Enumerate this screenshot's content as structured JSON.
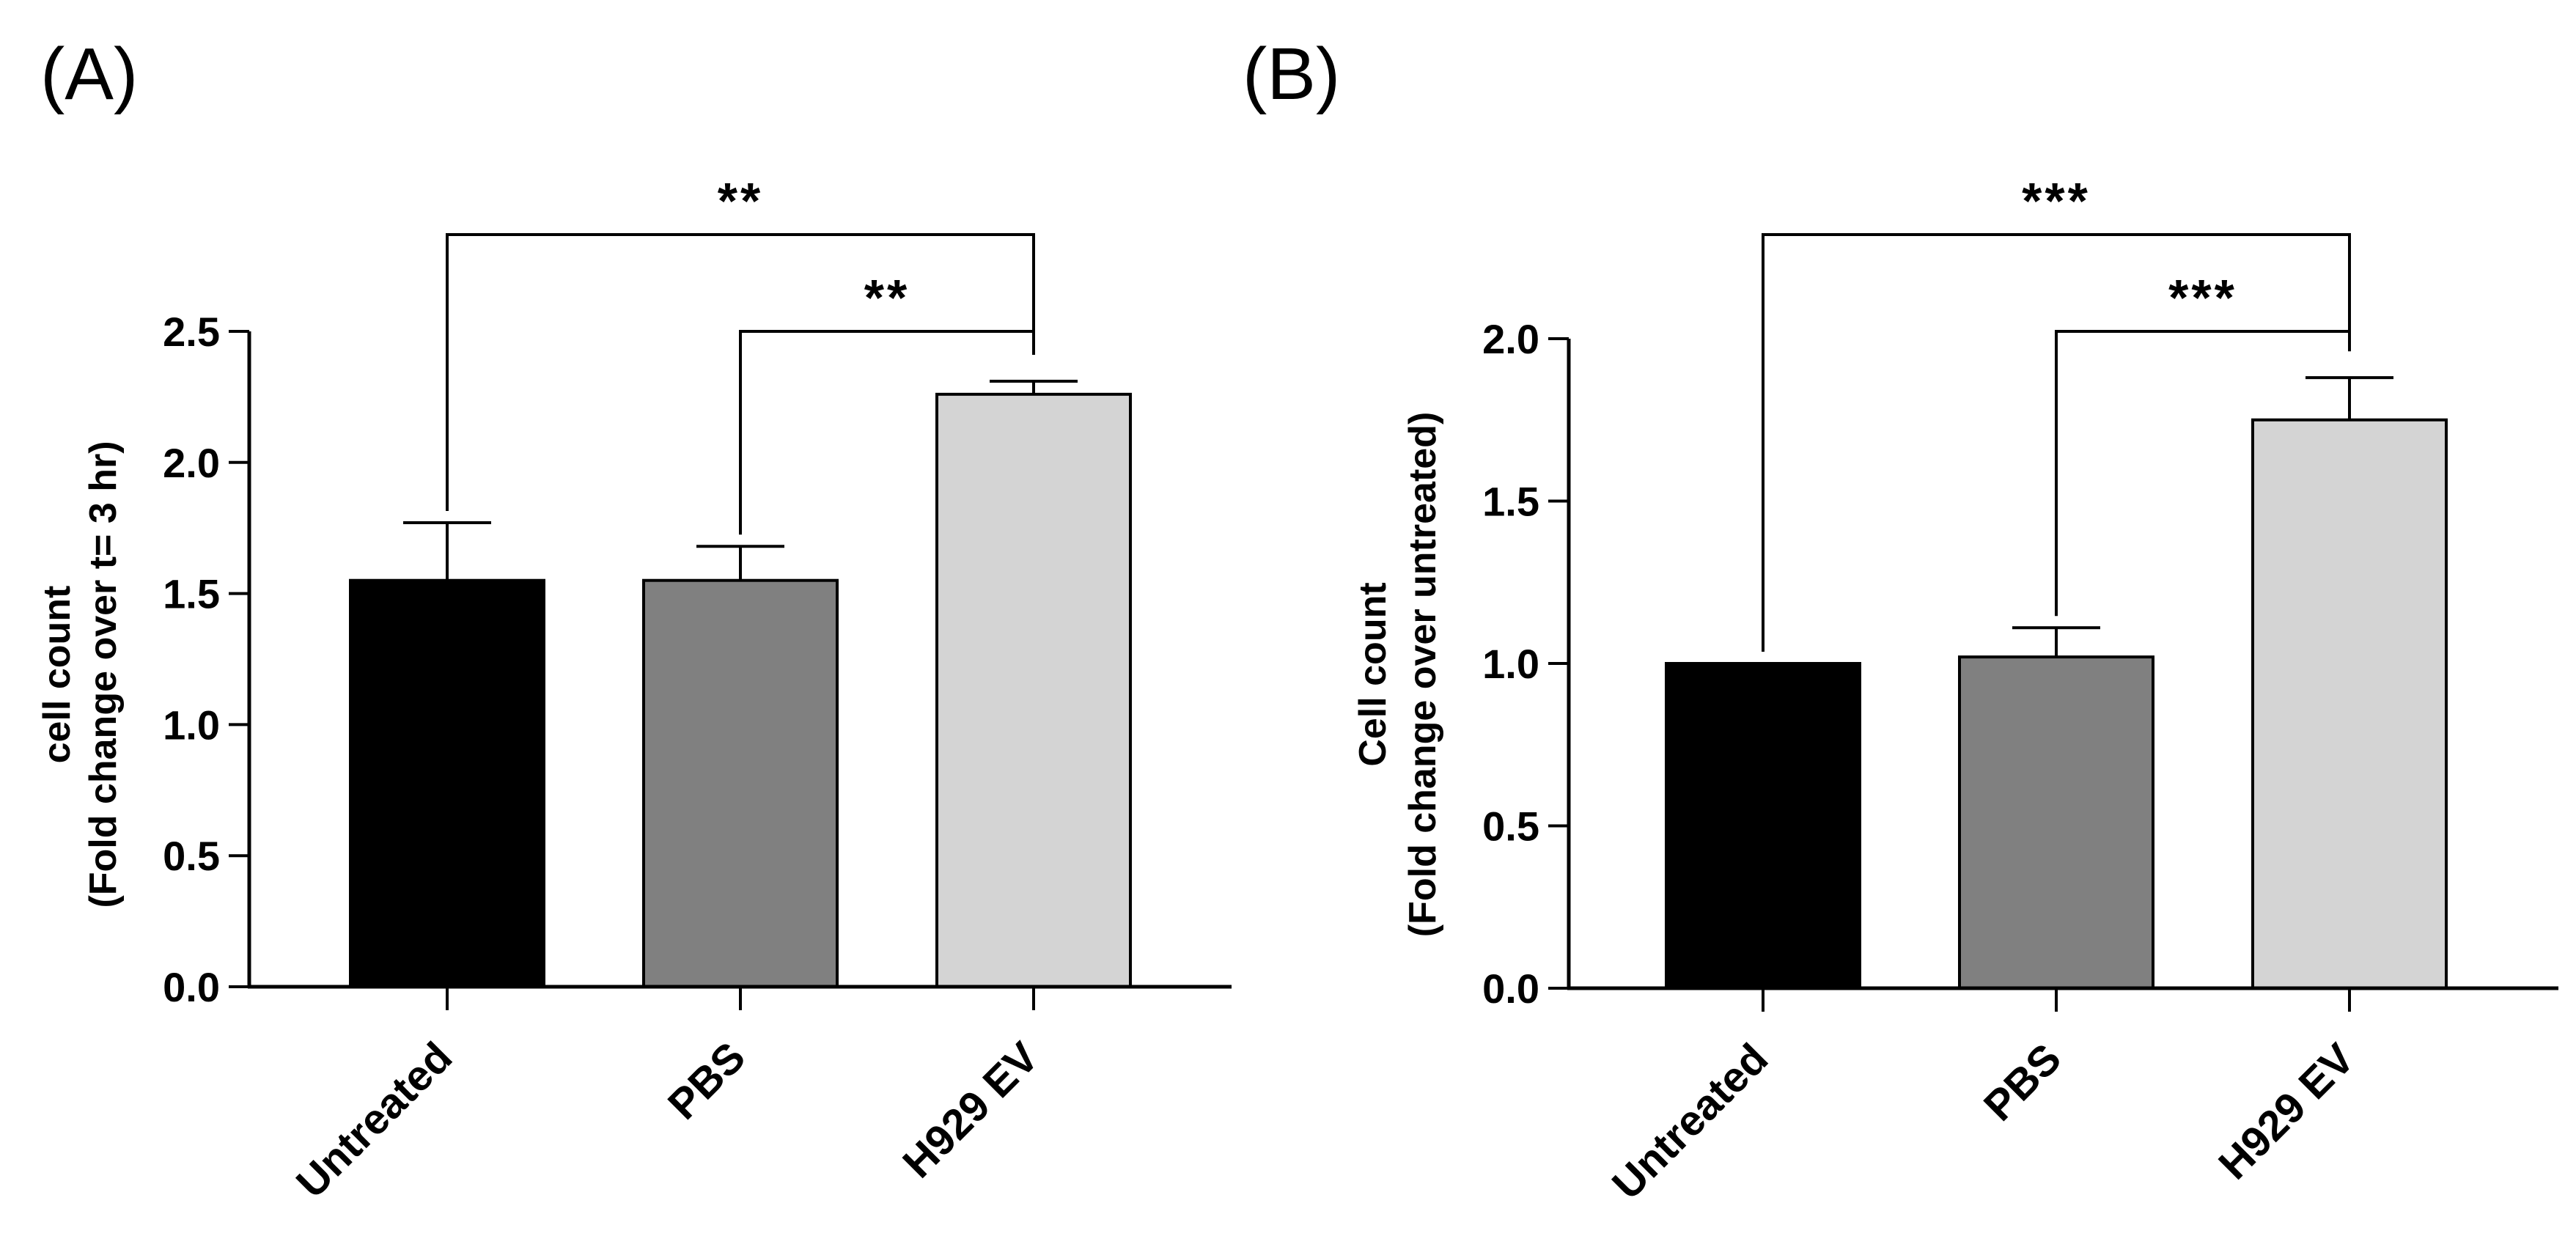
{
  "chart_data": [
    {
      "panel_label": "(A)",
      "type": "bar",
      "categories": [
        "Untreated",
        "PBS",
        "H929 EV"
      ],
      "values": [
        1.55,
        1.55,
        2.26
      ],
      "errors": [
        0.22,
        0.13,
        0.05
      ],
      "bar_colors": [
        "#000000",
        "#808080",
        "#d4d4d4"
      ],
      "ylabel_line1": "cell count",
      "ylabel_line2": "(Fold change over t= 3 hr)",
      "ylim": [
        0,
        2.5
      ],
      "yticks": [
        "0.0",
        "0.5",
        "1.0",
        "1.5",
        "2.0",
        "2.5"
      ],
      "ytick_values": [
        0,
        0.5,
        1.0,
        1.5,
        2.0,
        2.5
      ],
      "significance": [
        {
          "from": 0,
          "to": 2,
          "label": "**",
          "level": 2
        },
        {
          "from": 1,
          "to": 2,
          "label": "**",
          "level": 1
        }
      ]
    },
    {
      "panel_label": "(B)",
      "type": "bar",
      "categories": [
        "Untreated",
        "PBS",
        "H929 EV"
      ],
      "values": [
        1.0,
        1.02,
        1.75
      ],
      "errors": [
        0.0,
        0.09,
        0.13
      ],
      "bar_colors": [
        "#000000",
        "#808080",
        "#d4d4d4"
      ],
      "ylabel_line1": "Cell count",
      "ylabel_line2": "(Fold change over untreated)",
      "ylim": [
        0,
        2.0
      ],
      "yticks": [
        "0.0",
        "0.5",
        "1.0",
        "1.5",
        "2.0"
      ],
      "ytick_values": [
        0,
        0.5,
        1.0,
        1.5,
        2.0
      ],
      "significance": [
        {
          "from": 0,
          "to": 2,
          "label": "***",
          "level": 2
        },
        {
          "from": 1,
          "to": 2,
          "label": "***",
          "level": 1
        }
      ]
    }
  ]
}
